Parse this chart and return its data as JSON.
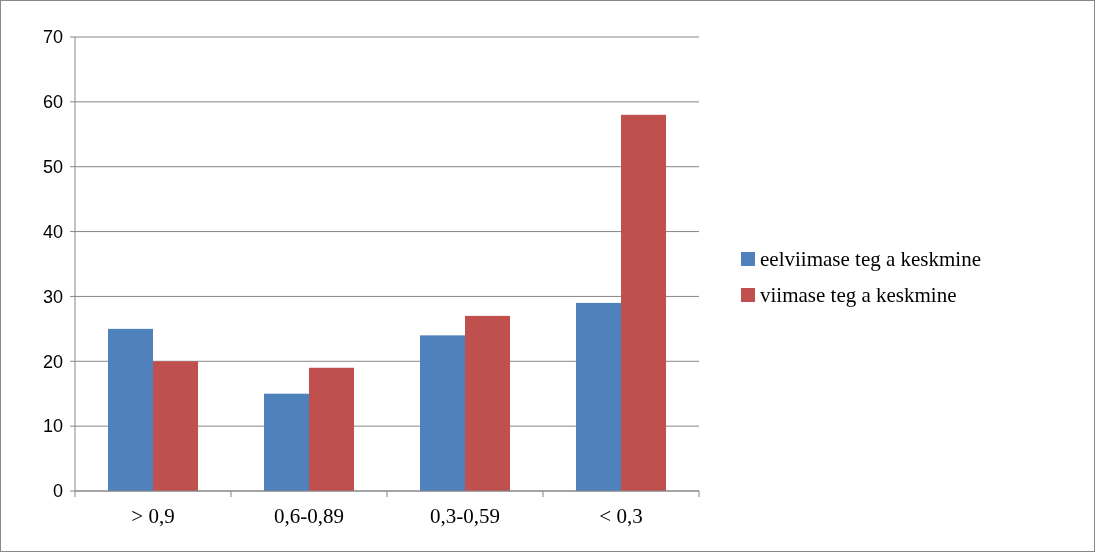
{
  "chart_data": {
    "type": "bar",
    "categories": [
      "> 0,9",
      "0,6-0,89",
      "0,3-0,59",
      "< 0,3"
    ],
    "series": [
      {
        "name": "eelviimase teg a keskmine",
        "color": "#4f81bd",
        "values": [
          25,
          15,
          24,
          29
        ]
      },
      {
        "name": "viimase teg a keskmine",
        "color": "#c0504d",
        "values": [
          20,
          19,
          27,
          58
        ]
      }
    ],
    "ylim": [
      0,
      70
    ],
    "yticks": [
      0,
      10,
      20,
      30,
      40,
      50,
      60,
      70
    ],
    "grid": "y",
    "legend": "right"
  }
}
